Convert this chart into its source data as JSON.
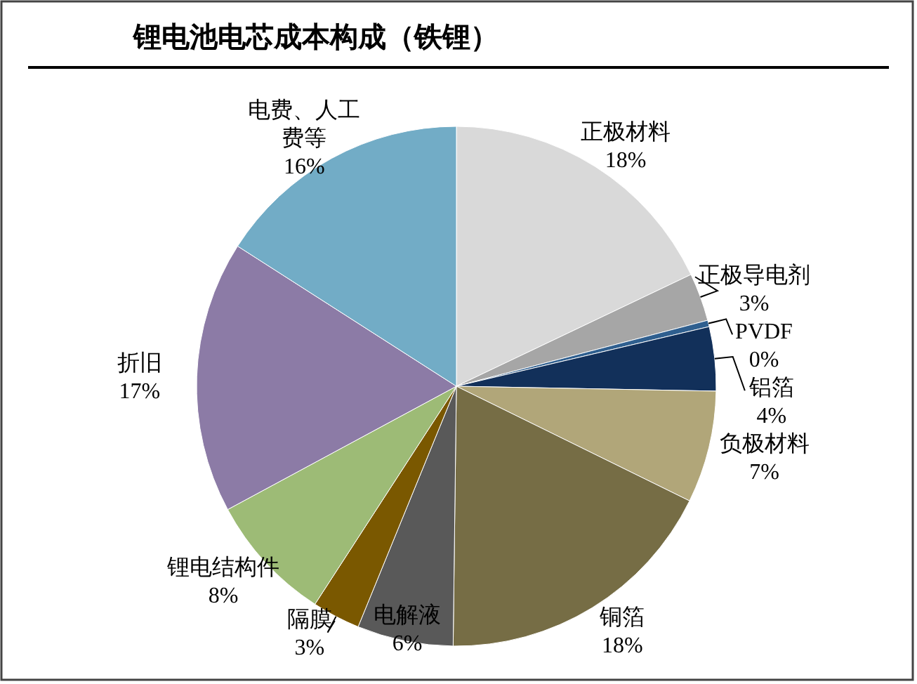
{
  "chart_data": {
    "type": "pie",
    "title": "锂电池电芯成本构成（铁锂）",
    "categories": [
      "正极材料",
      "正极导电剂",
      "PVDF",
      "铝箔",
      "负极材料",
      "铜箔",
      "电解液",
      "隔膜",
      "锂电结构件",
      "折旧",
      "电费、人工费等"
    ],
    "values": [
      18,
      3,
      0.4,
      4,
      7,
      18,
      6,
      3,
      8,
      17,
      16
    ],
    "value_labels": [
      "18%",
      "3%",
      "0%",
      "4%",
      "7%",
      "18%",
      "6%",
      "3%",
      "8%",
      "17%",
      "16%"
    ],
    "colors": [
      "#d9d9d9",
      "#a6a6a6",
      "#2f5f8f",
      "#12305a",
      "#b1a679",
      "#766d45",
      "#595959",
      "#7a5800",
      "#9dbb76",
      "#8c7ba6",
      "#72acc6"
    ]
  }
}
